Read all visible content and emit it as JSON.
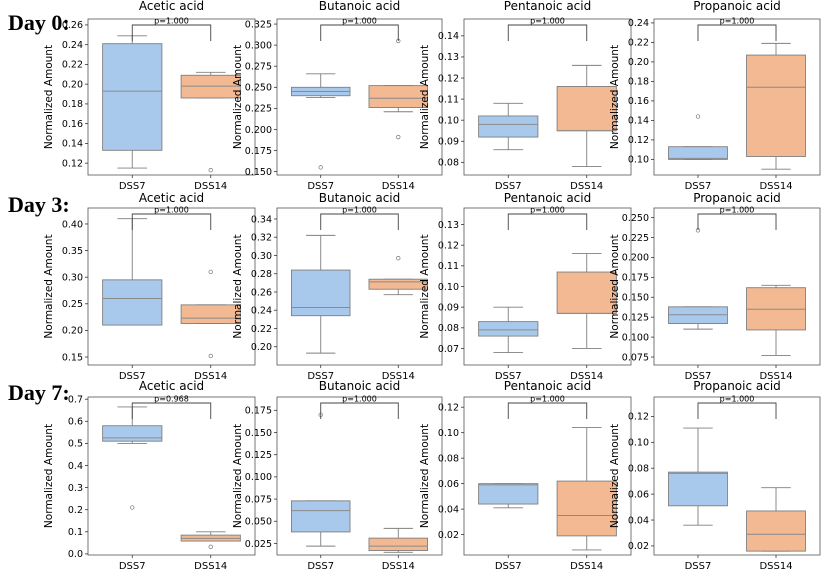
{
  "figure": {
    "day_labels": [
      "Day 0:",
      "Day 3:",
      "Day 7:"
    ],
    "ylabel": "Normalized Amount",
    "colors": {
      "DSS7": "#a9c9ec",
      "DSS14": "#f3b992",
      "edge": "#7f7f7f",
      "median": "#8a8a8a"
    }
  },
  "chart_data": [
    {
      "type": "box",
      "row": 0,
      "title": "Acetic acid",
      "categories": [
        "DSS7",
        "DSS14"
      ],
      "pvalue": "p=1.000",
      "ylim": [
        0.108,
        0.266
      ],
      "yticks": [
        0.12,
        0.14,
        0.16,
        0.18,
        0.2,
        0.22,
        0.24,
        0.26
      ],
      "boxes": [
        {
          "min": 0.115,
          "q1": 0.133,
          "median": 0.193,
          "q3": 0.241,
          "max": 0.249,
          "outliers": []
        },
        {
          "min": 0.186,
          "q1": 0.186,
          "median": 0.198,
          "q3": 0.209,
          "max": 0.212,
          "outliers": [
            0.113
          ]
        }
      ]
    },
    {
      "type": "box",
      "row": 0,
      "title": "Butanoic acid",
      "categories": [
        "DSS7",
        "DSS14"
      ],
      "pvalue": "p=1.000",
      "ylim": [
        0.146,
        0.331
      ],
      "yticks": [
        0.15,
        0.175,
        0.2,
        0.225,
        0.25,
        0.275,
        0.3,
        0.325
      ],
      "boxes": [
        {
          "min": 0.238,
          "q1": 0.24,
          "median": 0.245,
          "q3": 0.25,
          "max": 0.266,
          "outliers": [
            0.155
          ]
        },
        {
          "min": 0.221,
          "q1": 0.226,
          "median": 0.237,
          "q3": 0.252,
          "max": 0.252,
          "outliers": [
            0.305,
            0.191
          ]
        }
      ]
    },
    {
      "type": "box",
      "row": 0,
      "title": "Pentanoic acid",
      "categories": [
        "DSS7",
        "DSS14"
      ],
      "pvalue": "p=1.000",
      "ylim": [
        0.074,
        0.148
      ],
      "yticks": [
        0.08,
        0.09,
        0.1,
        0.11,
        0.12,
        0.13,
        0.14
      ],
      "boxes": [
        {
          "min": 0.086,
          "q1": 0.092,
          "median": 0.098,
          "q3": 0.102,
          "max": 0.108,
          "outliers": []
        },
        {
          "min": 0.078,
          "q1": 0.095,
          "median": 0.095,
          "q3": 0.116,
          "max": 0.126,
          "outliers": []
        }
      ]
    },
    {
      "type": "box",
      "row": 0,
      "title": "Propanoic acid",
      "categories": [
        "DSS7",
        "DSS14"
      ],
      "pvalue": "p=1.000",
      "ylim": [
        0.084,
        0.244
      ],
      "yticks": [
        0.1,
        0.12,
        0.14,
        0.16,
        0.18,
        0.2,
        0.22,
        0.24
      ],
      "boxes": [
        {
          "min": 0.1,
          "q1": 0.1,
          "median": 0.101,
          "q3": 0.113,
          "max": 0.113,
          "outliers": [
            0.144
          ]
        },
        {
          "min": 0.09,
          "q1": 0.103,
          "median": 0.174,
          "q3": 0.207,
          "max": 0.219,
          "outliers": []
        }
      ]
    },
    {
      "type": "box",
      "row": 1,
      "title": "Acetic acid",
      "categories": [
        "DSS7",
        "DSS14"
      ],
      "pvalue": "p=1.000",
      "ylim": [
        0.135,
        0.43
      ],
      "yticks": [
        0.15,
        0.2,
        0.25,
        0.3,
        0.35,
        0.4
      ],
      "boxes": [
        {
          "min": 0.21,
          "q1": 0.21,
          "median": 0.26,
          "q3": 0.295,
          "max": 0.41,
          "outliers": []
        },
        {
          "min": 0.213,
          "q1": 0.213,
          "median": 0.223,
          "q3": 0.248,
          "max": 0.248,
          "outliers": [
            0.31,
            0.152
          ]
        }
      ]
    },
    {
      "type": "box",
      "row": 1,
      "title": "Butanoic acid",
      "categories": [
        "DSS7",
        "DSS14"
      ],
      "pvalue": "p=1.000",
      "ylim": [
        0.18,
        0.352
      ],
      "yticks": [
        0.2,
        0.22,
        0.24,
        0.26,
        0.28,
        0.3,
        0.32,
        0.34
      ],
      "boxes": [
        {
          "min": 0.193,
          "q1": 0.234,
          "median": 0.243,
          "q3": 0.284,
          "max": 0.322,
          "outliers": []
        },
        {
          "min": 0.257,
          "q1": 0.263,
          "median": 0.271,
          "q3": 0.274,
          "max": 0.274,
          "outliers": [
            0.297
          ]
        }
      ]
    },
    {
      "type": "box",
      "row": 1,
      "title": "Pentanoic acid",
      "categories": [
        "DSS7",
        "DSS14"
      ],
      "pvalue": "p=1.000",
      "ylim": [
        0.062,
        0.138
      ],
      "yticks": [
        0.07,
        0.08,
        0.09,
        0.1,
        0.11,
        0.12,
        0.13
      ],
      "boxes": [
        {
          "min": 0.068,
          "q1": 0.076,
          "median": 0.079,
          "q3": 0.083,
          "max": 0.09,
          "outliers": []
        },
        {
          "min": 0.07,
          "q1": 0.087,
          "median": 0.087,
          "q3": 0.107,
          "max": 0.116,
          "outliers": []
        }
      ]
    },
    {
      "type": "box",
      "row": 1,
      "title": "Propanoic acid",
      "categories": [
        "DSS7",
        "DSS14"
      ],
      "pvalue": "p=1.000",
      "ylim": [
        0.065,
        0.262
      ],
      "yticks": [
        0.075,
        0.1,
        0.125,
        0.15,
        0.175,
        0.2,
        0.225,
        0.25
      ],
      "boxes": [
        {
          "min": 0.11,
          "q1": 0.117,
          "median": 0.128,
          "q3": 0.138,
          "max": 0.138,
          "outliers": [
            0.234
          ]
        },
        {
          "min": 0.077,
          "q1": 0.109,
          "median": 0.135,
          "q3": 0.162,
          "max": 0.165,
          "outliers": []
        }
      ]
    },
    {
      "type": "box",
      "row": 2,
      "title": "Acetic acid",
      "categories": [
        "DSS7",
        "DSS14"
      ],
      "pvalue": "p=0.968",
      "ylim": [
        -0.005,
        0.71
      ],
      "yticks": [
        0.0,
        0.1,
        0.2,
        0.3,
        0.4,
        0.5,
        0.6,
        0.7
      ],
      "boxes": [
        {
          "min": 0.5,
          "q1": 0.51,
          "median": 0.525,
          "q3": 0.58,
          "max": 0.665,
          "outliers": [
            0.21
          ]
        },
        {
          "min": 0.058,
          "q1": 0.058,
          "median": 0.07,
          "q3": 0.085,
          "max": 0.1,
          "outliers": [
            0.032
          ]
        }
      ]
    },
    {
      "type": "box",
      "row": 2,
      "title": "Butanoic acid",
      "categories": [
        "DSS7",
        "DSS14"
      ],
      "pvalue": "p=1.000",
      "ylim": [
        0.012,
        0.19
      ],
      "yticks": [
        0.025,
        0.05,
        0.075,
        0.1,
        0.125,
        0.15,
        0.175
      ],
      "boxes": [
        {
          "min": 0.022,
          "q1": 0.038,
          "median": 0.062,
          "q3": 0.073,
          "max": 0.073,
          "outliers": [
            0.17
          ]
        },
        {
          "min": 0.015,
          "q1": 0.017,
          "median": 0.022,
          "q3": 0.031,
          "max": 0.042,
          "outliers": []
        }
      ]
    },
    {
      "type": "box",
      "row": 2,
      "title": "Pentanoic acid",
      "categories": [
        "DSS7",
        "DSS14"
      ],
      "pvalue": "p=1.000",
      "ylim": [
        0.004,
        0.128
      ],
      "yticks": [
        0.02,
        0.04,
        0.06,
        0.08,
        0.1,
        0.12
      ],
      "boxes": [
        {
          "min": 0.041,
          "q1": 0.044,
          "median": 0.059,
          "q3": 0.06,
          "max": 0.06,
          "outliers": []
        },
        {
          "min": 0.008,
          "q1": 0.019,
          "median": 0.035,
          "q3": 0.062,
          "max": 0.104,
          "outliers": []
        }
      ]
    },
    {
      "type": "box",
      "row": 2,
      "title": "Propanoic acid",
      "categories": [
        "DSS7",
        "DSS14"
      ],
      "pvalue": "p=1.000",
      "ylim": [
        0.013,
        0.135
      ],
      "yticks": [
        0.02,
        0.04,
        0.06,
        0.08,
        0.1,
        0.12
      ],
      "boxes": [
        {
          "min": 0.036,
          "q1": 0.051,
          "median": 0.076,
          "q3": 0.077,
          "max": 0.111,
          "outliers": []
        },
        {
          "min": 0.016,
          "q1": 0.016,
          "median": 0.029,
          "q3": 0.047,
          "max": 0.065,
          "outliers": []
        }
      ]
    }
  ]
}
